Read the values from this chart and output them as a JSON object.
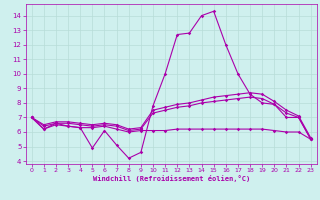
{
  "background_color": "#cff0ee",
  "grid_color": "#b8ddd8",
  "line_color": "#aa00aa",
  "xlim": [
    -0.5,
    23.5
  ],
  "ylim": [
    3.8,
    14.8
  ],
  "yticks": [
    4,
    5,
    6,
    7,
    8,
    9,
    10,
    11,
    12,
    13,
    14
  ],
  "xticks": [
    0,
    1,
    2,
    3,
    4,
    5,
    6,
    7,
    8,
    9,
    10,
    11,
    12,
    13,
    14,
    15,
    16,
    17,
    18,
    19,
    20,
    21,
    22,
    23
  ],
  "xlabel": "Windchill (Refroidissement éolien,°C)",
  "series": [
    {
      "x": [
        0,
        1,
        2,
        3,
        4,
        5,
        6,
        7,
        8,
        9,
        10,
        11,
        12,
        13,
        14,
        15,
        16,
        17,
        18,
        19,
        20,
        21,
        22,
        23
      ],
      "y": [
        7.0,
        6.2,
        6.6,
        6.4,
        6.3,
        4.9,
        6.1,
        5.1,
        4.2,
        4.6,
        7.8,
        10.0,
        12.7,
        12.8,
        14.0,
        14.3,
        12.0,
        10.0,
        8.6,
        8.0,
        7.9,
        7.0,
        7.0,
        5.5
      ]
    },
    {
      "x": [
        0,
        1,
        2,
        3,
        4,
        5,
        6,
        7,
        8,
        9,
        10,
        11,
        12,
        13,
        14,
        15,
        16,
        17,
        18,
        19,
        20,
        21,
        22,
        23
      ],
      "y": [
        7.0,
        6.5,
        6.7,
        6.7,
        6.6,
        6.5,
        6.6,
        6.5,
        6.2,
        6.3,
        7.5,
        7.7,
        7.9,
        8.0,
        8.2,
        8.4,
        8.5,
        8.6,
        8.7,
        8.6,
        8.1,
        7.5,
        7.1,
        5.6
      ]
    },
    {
      "x": [
        0,
        1,
        2,
        3,
        4,
        5,
        6,
        7,
        8,
        9,
        10,
        11,
        12,
        13,
        14,
        15,
        16,
        17,
        18,
        19,
        20,
        21,
        22,
        23
      ],
      "y": [
        7.0,
        6.4,
        6.6,
        6.6,
        6.5,
        6.4,
        6.5,
        6.4,
        6.1,
        6.2,
        7.3,
        7.5,
        7.7,
        7.8,
        8.0,
        8.1,
        8.2,
        8.3,
        8.4,
        8.3,
        7.9,
        7.3,
        7.0,
        5.5
      ]
    },
    {
      "x": [
        0,
        1,
        2,
        3,
        4,
        5,
        6,
        7,
        8,
        9,
        10,
        11,
        12,
        13,
        14,
        15,
        16,
        17,
        18,
        19,
        20,
        21,
        22,
        23
      ],
      "y": [
        7.0,
        6.2,
        6.5,
        6.4,
        6.3,
        6.3,
        6.4,
        6.2,
        6.0,
        6.1,
        6.1,
        6.1,
        6.2,
        6.2,
        6.2,
        6.2,
        6.2,
        6.2,
        6.2,
        6.2,
        6.1,
        6.0,
        6.0,
        5.5
      ]
    }
  ]
}
